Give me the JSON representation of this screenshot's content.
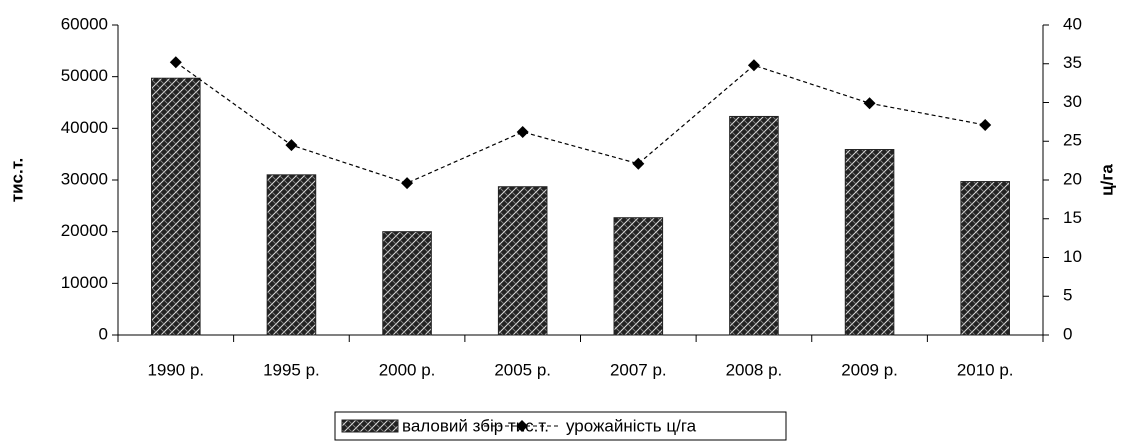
{
  "chart_data": {
    "type": "bar",
    "categories": [
      "1990 р.",
      "1995 р.",
      "2000 р.",
      "2005 р.",
      "2007 р.",
      "2008 р.",
      "2009 р.",
      "2010 р."
    ],
    "series": [
      {
        "name": "валовий збір тис.т.",
        "color": "#222222",
        "values": [
          49700,
          31000,
          20000,
          28700,
          22700,
          42300,
          35900,
          29700
        ]
      },
      {
        "name": "урожайність ц/га",
        "color": "#000000",
        "type": "line",
        "axis": "y2",
        "values": [
          35.2,
          24.5,
          19.6,
          26.2,
          22.1,
          34.8,
          29.9,
          27.1
        ]
      }
    ],
    "y_label": "тис.т.",
    "y2_label": "ц/га",
    "ylim": [
      0,
      60000
    ],
    "yticks": [
      0,
      10000,
      20000,
      30000,
      40000,
      50000,
      60000
    ],
    "y2lim": [
      0,
      40
    ],
    "y2ticks": [
      0,
      5,
      10,
      15,
      20,
      25,
      30,
      35,
      40
    ],
    "grid": false,
    "legend": "bottom"
  }
}
